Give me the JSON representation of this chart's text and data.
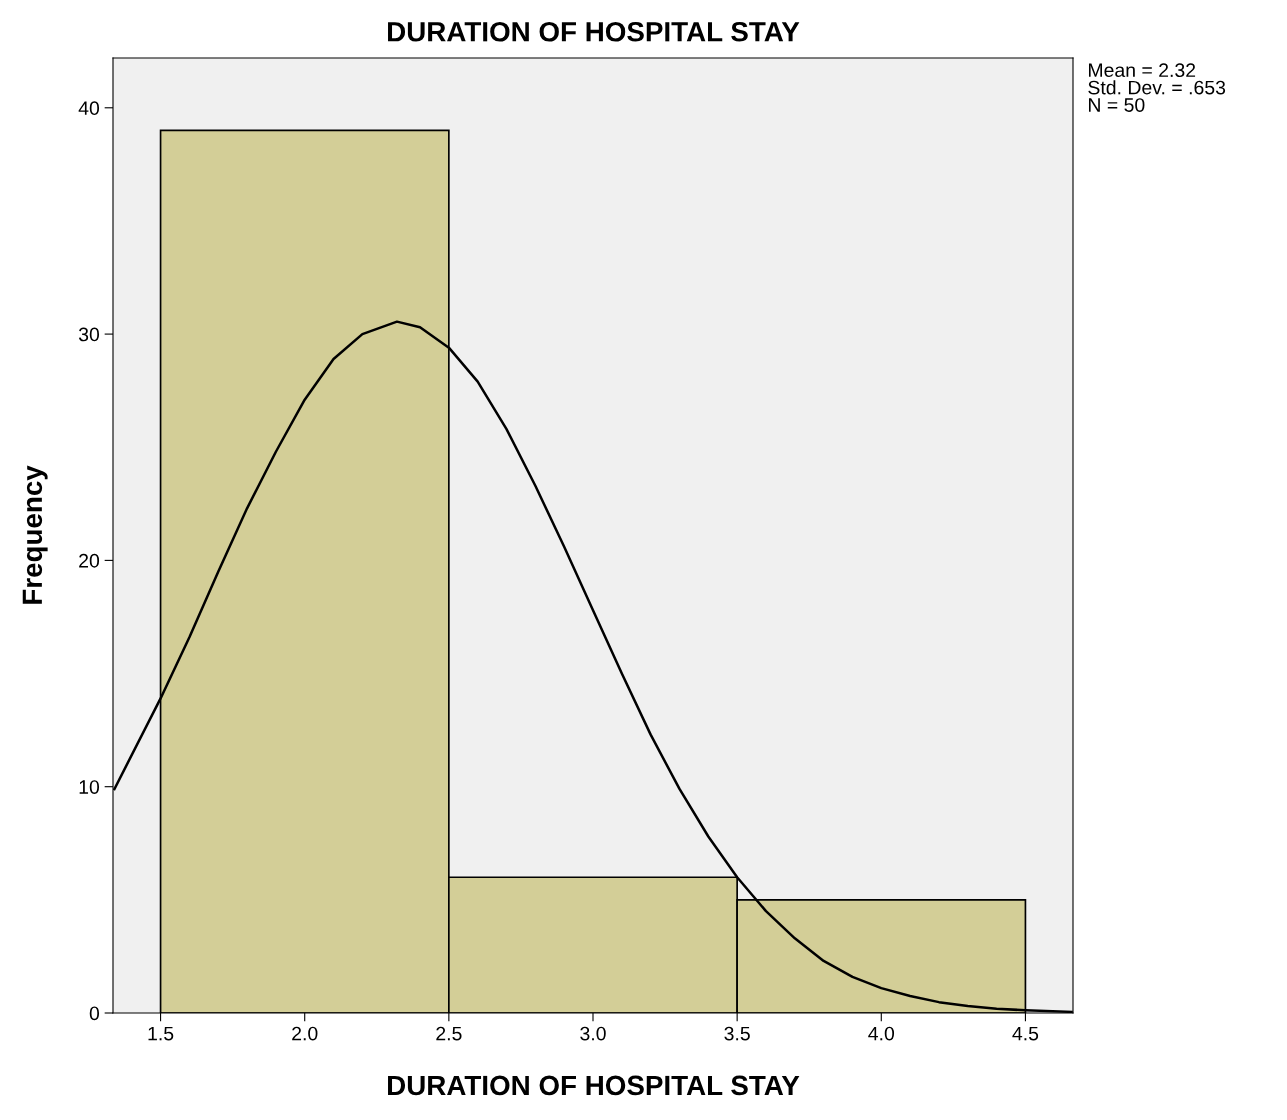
{
  "chart_data": {
    "type": "histogram",
    "title": "DURATION OF HOSPITAL STAY",
    "xlabel": "DURATION OF HOSPITAL STAY",
    "ylabel": "Frequency",
    "bins": [
      1.5,
      2.5,
      3.5,
      4.5
    ],
    "series": [
      {
        "color": "#d3ce97",
        "values": [
          39,
          6,
          5
        ]
      },
      {
        "type": "line",
        "color": "#000000",
        "x": [
          1.34,
          1.5,
          1.6,
          1.7,
          1.8,
          1.9,
          2.0,
          2.1,
          2.2,
          2.32,
          2.4,
          2.5,
          2.6,
          2.7,
          2.8,
          2.9,
          3.0,
          3.1,
          3.2,
          3.3,
          3.4,
          3.5,
          3.6,
          3.7,
          3.8,
          3.9,
          4.0,
          4.1,
          4.2,
          4.3,
          4.4,
          4.5,
          4.66
        ],
        "values": [
          9.9,
          13.9,
          16.6,
          19.5,
          22.3,
          24.8,
          27.1,
          28.9,
          30.0,
          30.55,
          30.3,
          29.4,
          27.9,
          25.8,
          23.3,
          20.6,
          17.8,
          15.0,
          12.3,
          9.9,
          7.8,
          6.0,
          4.5,
          3.3,
          2.3,
          1.6,
          1.1,
          0.75,
          0.48,
          0.31,
          0.19,
          0.12,
          0.05
        ]
      }
    ],
    "marker": "none",
    "line_style": "solid",
    "grid": false,
    "xlim": [
      1.335,
      4.665
    ],
    "ylim": [
      0,
      42.2
    ],
    "xticks": [
      1.5,
      {
        "value": 2,
        "label": "2.0"
      },
      2.5,
      {
        "value": 3,
        "label": "3.0"
      },
      3.5,
      {
        "value": 4,
        "label": "4.0"
      },
      4.5
    ],
    "yticks": [
      0,
      10,
      20,
      30,
      40
    ],
    "annotations": [
      "Mean = 2.32\nStd. Dev. = .653\nN = 50"
    ]
  }
}
